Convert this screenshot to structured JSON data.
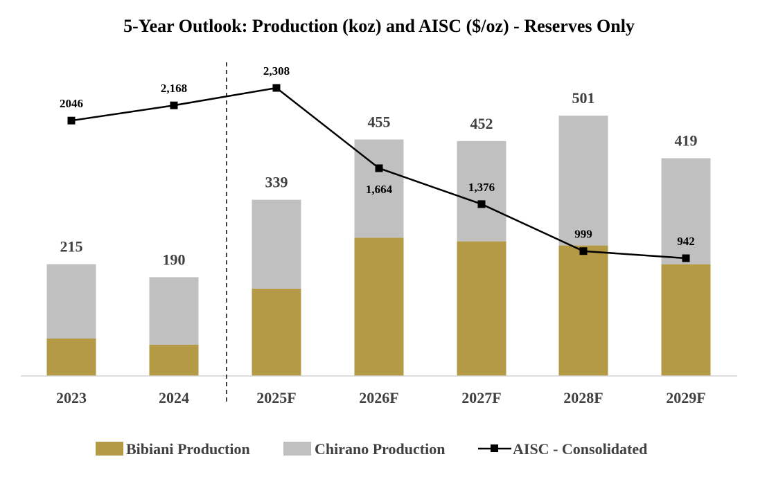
{
  "chart_data": {
    "type": "bar",
    "stacked": true,
    "title": "5-Year Outlook: Production (koz) and AISC ($/oz) - Reserves Only",
    "categories": [
      "2023",
      "2024",
      "2025F",
      "2026F",
      "2027F",
      "2028F",
      "2029F"
    ],
    "series": [
      {
        "name": "Bibiani Production",
        "kind": "bar",
        "color": "#B59A45",
        "values": [
          72,
          60,
          168,
          266,
          259,
          251,
          215
        ]
      },
      {
        "name": "Chirano Production",
        "kind": "bar",
        "color": "#C0C0C0",
        "values": [
          143,
          130,
          171,
          189,
          193,
          250,
          204
        ]
      },
      {
        "name": "AISC - Consolidated",
        "kind": "line",
        "color": "#000000",
        "values": [
          2046,
          2168,
          2308,
          1664,
          1376,
          999,
          942
        ]
      }
    ],
    "total_labels": [
      "215",
      "190",
      "339",
      "455",
      "452",
      "501",
      "419"
    ],
    "aisc_labels": [
      "2046",
      "2,168",
      "2,308",
      "1,664",
      "1,376",
      "999",
      "942"
    ],
    "ylim": [
      0,
      501
    ],
    "secondary_ylim": [
      0,
      2400
    ],
    "divider_after_category": "2024",
    "legend_position": "bottom"
  }
}
